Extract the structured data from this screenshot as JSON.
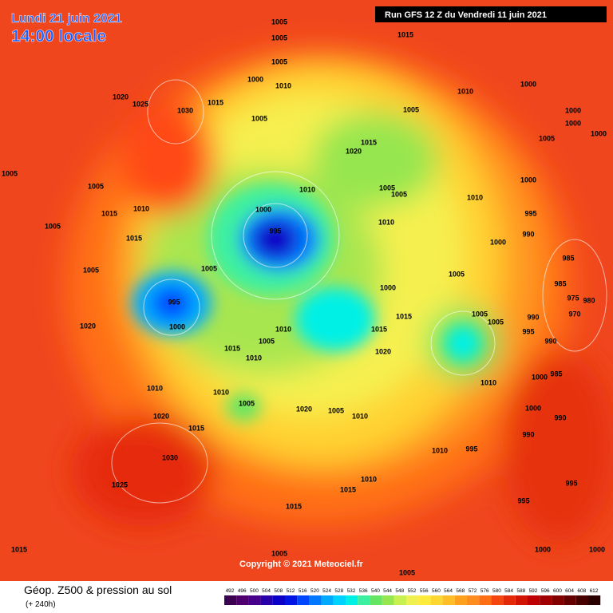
{
  "header": {
    "date": "Lundi 21 juin 2021",
    "time": "14:00 locale",
    "run": "Run GFS 12 Z du Vendredi 11 juin 2021"
  },
  "copyright": "Copyright © 2021 Meteociel.fr",
  "footer": {
    "title": "Géop. Z500 & pression au sol",
    "lead": "(+ 240h)"
  },
  "legend": {
    "values": [
      492,
      496,
      500,
      504,
      508,
      512,
      516,
      520,
      524,
      528,
      532,
      536,
      540,
      544,
      548,
      552,
      556,
      560,
      564,
      568,
      572,
      576,
      580,
      584,
      588,
      592,
      596,
      600,
      604,
      608,
      612
    ],
    "colors": [
      "#3c0050",
      "#50006e",
      "#46008c",
      "#2800aa",
      "#0a00c8",
      "#0014e6",
      "#0046ff",
      "#0078ff",
      "#00aaff",
      "#00d2ff",
      "#00f0e6",
      "#3cf0a0",
      "#64e664",
      "#96e650",
      "#c8f050",
      "#f0f050",
      "#ffeb3c",
      "#ffd732",
      "#ffbe28",
      "#ffa01e",
      "#ff8c1e",
      "#ff6e14",
      "#f5460f",
      "#e6280a",
      "#d21405",
      "#be0000",
      "#a00000",
      "#820000",
      "#640000",
      "#460000",
      "#280000"
    ]
  },
  "isobar_labels": [
    1005,
    1005,
    1015,
    1005,
    1000,
    1010,
    1020,
    1025,
    1030,
    1015,
    1000,
    1010,
    1005,
    1000,
    1000,
    1000,
    1005,
    1015,
    1005,
    1020,
    1005,
    1005,
    1010,
    1005,
    1005,
    1010,
    1000,
    1010,
    1015,
    1000,
    995,
    1010,
    1005,
    995,
    990,
    1015,
    1000,
    985,
    1005,
    1005,
    1005,
    985,
    975,
    980,
    1000,
    995,
    1015,
    1005,
    1005,
    990,
    970,
    1020,
    1000,
    1010,
    1015,
    995,
    1005,
    1015,
    990,
    1020,
    1010,
    1000,
    985,
    1010,
    1010,
    1010,
    1005,
    1020,
    1005,
    1010,
    1000,
    990,
    1020,
    1015,
    990,
    1010,
    995,
    1030,
    1010,
    1025,
    1015,
    995,
    995,
    1015,
    1015,
    1005,
    1000,
    1000,
    1005
  ]
}
